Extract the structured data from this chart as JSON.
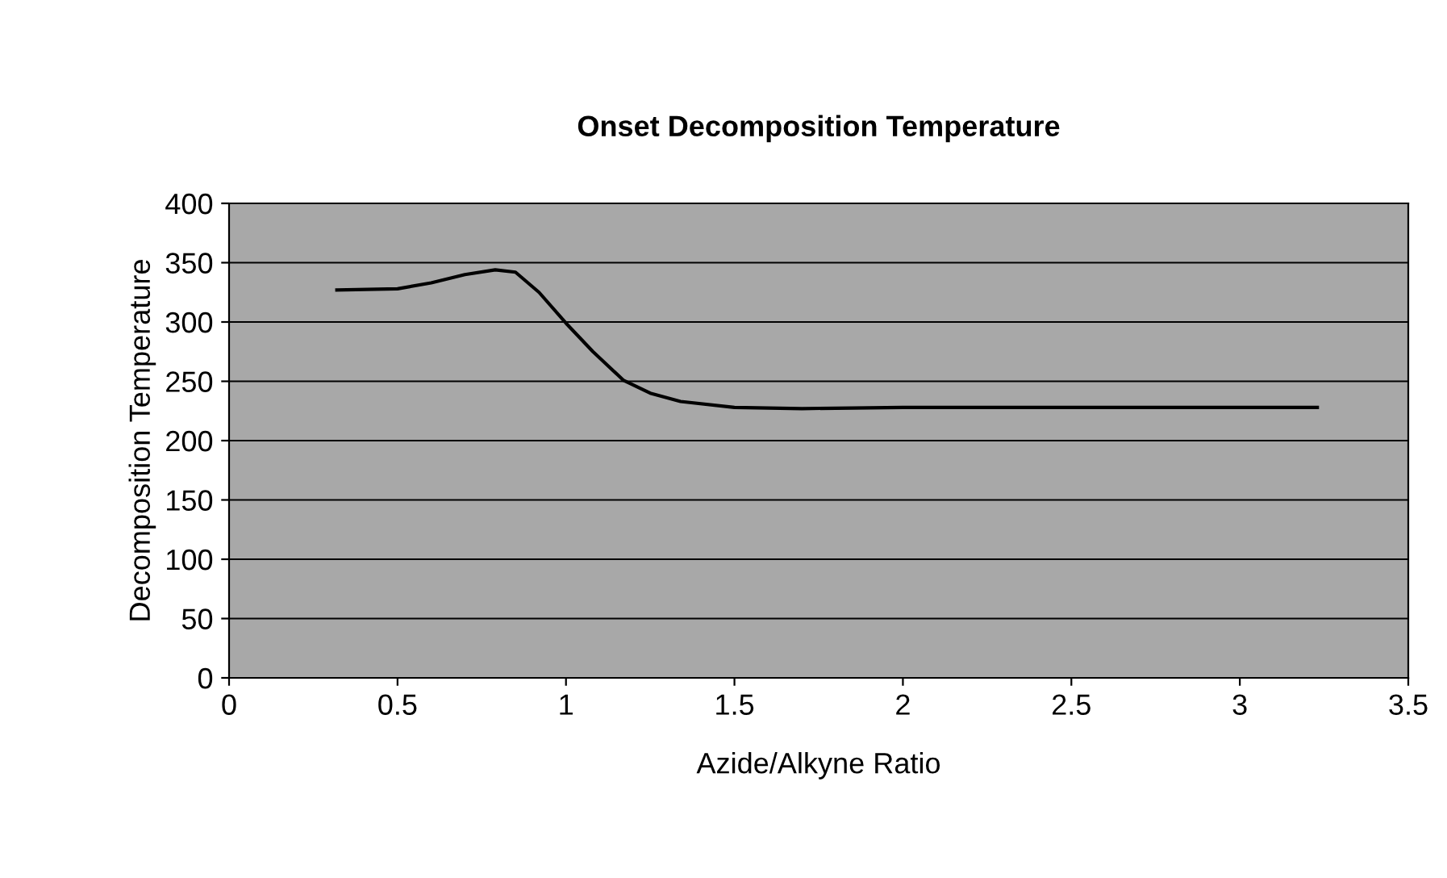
{
  "chart_data": {
    "type": "line",
    "title": "Onset Decomposition Temperature",
    "xlabel": "Azide/Alkyne Ratio",
    "ylabel": "Decomposition Temperature",
    "series": [
      {
        "color": "#000000",
        "x": [
          0.32,
          0.5,
          0.6,
          0.7,
          0.79,
          0.85,
          0.92,
          1.0,
          1.08,
          1.17,
          1.25,
          1.34,
          1.5,
          1.7,
          2.0,
          2.5,
          3.0,
          3.23
        ],
        "values": [
          327,
          328,
          333,
          340,
          344,
          342,
          325,
          299,
          275,
          251,
          240,
          233,
          228,
          227,
          228,
          228,
          228,
          228
        ]
      }
    ],
    "xlim": [
      0,
      3.5
    ],
    "xticks": [
      0,
      0.5,
      1,
      1.5,
      2,
      2.5,
      3,
      3.5
    ],
    "ylim": [
      0,
      400
    ],
    "yticks": [
      0,
      50,
      100,
      150,
      200,
      250,
      300,
      350,
      400
    ],
    "grid": "y",
    "legend": false,
    "marker": "none",
    "line_style": "solid"
  }
}
